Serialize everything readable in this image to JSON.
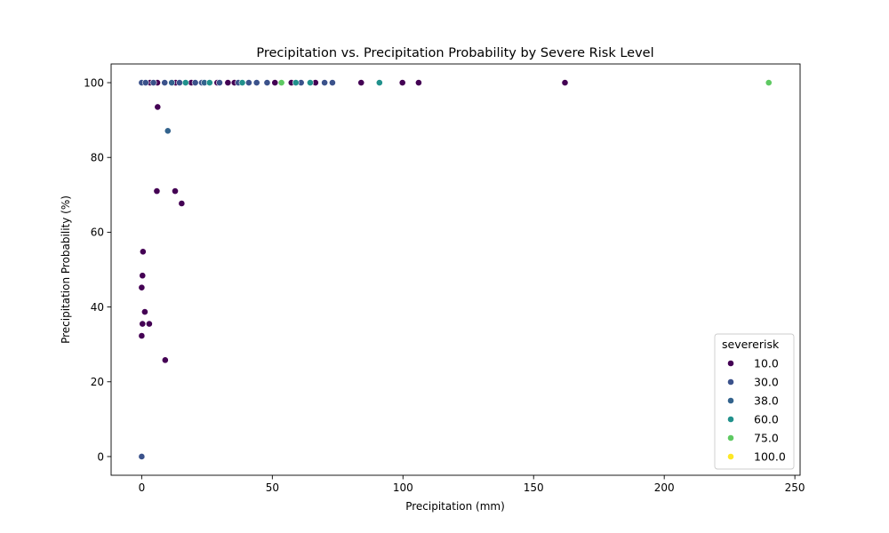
{
  "chart_data": {
    "type": "scatter",
    "title": "Precipitation vs. Precipitation Probability by Severe Risk Level",
    "xlabel": "Precipitation (mm)",
    "ylabel": "Precipitation Probability (%)",
    "xlim": [
      -11.7,
      252
    ],
    "ylim": [
      -5,
      105
    ],
    "xticks": [
      0,
      50,
      100,
      150,
      200,
      250
    ],
    "yticks": [
      0,
      20,
      40,
      60,
      80,
      100
    ],
    "grid": false,
    "legend": {
      "title": "severerisk",
      "placement": "lower-right",
      "entries": [
        {
          "label": "10.0",
          "color": "#440154"
        },
        {
          "label": "30.0",
          "color": "#3b528b"
        },
        {
          "label": "38.0",
          "color": "#33638d"
        },
        {
          "label": "60.0",
          "color": "#21918c"
        },
        {
          "label": "75.0",
          "color": "#5ec962"
        },
        {
          "label": "100.0",
          "color": "#fde725"
        }
      ]
    },
    "series": [
      {
        "name": "10.0",
        "color": "#440154",
        "points": [
          [
            0.3,
            48.4
          ],
          [
            0.5,
            54.8
          ],
          [
            0.0,
            45.2
          ],
          [
            1.2,
            38.7
          ],
          [
            0.3,
            35.5
          ],
          [
            2.9,
            35.5
          ],
          [
            0.0,
            32.3
          ],
          [
            9.0,
            25.8
          ],
          [
            5.8,
            71.0
          ],
          [
            12.8,
            71.0
          ],
          [
            15.3,
            67.7
          ],
          [
            6.1,
            93.5
          ],
          [
            3.2,
            100
          ],
          [
            6.0,
            100
          ],
          [
            13.0,
            100
          ],
          [
            19.0,
            100
          ],
          [
            28.9,
            100
          ],
          [
            33.0,
            100
          ],
          [
            35.5,
            100
          ],
          [
            51.0,
            100
          ],
          [
            57.3,
            100
          ],
          [
            66.5,
            100
          ],
          [
            84.0,
            100
          ],
          [
            99.8,
            100
          ],
          [
            106.0,
            100
          ],
          [
            162.0,
            100
          ]
        ]
      },
      {
        "name": "30.0",
        "color": "#3b528b",
        "points": [
          [
            0.0,
            0.0
          ],
          [
            0.0,
            100
          ],
          [
            1.5,
            100
          ],
          [
            4.5,
            100
          ],
          [
            8.8,
            100
          ],
          [
            14.5,
            100
          ],
          [
            20.5,
            100
          ],
          [
            23.0,
            100
          ],
          [
            29.8,
            100
          ],
          [
            37.0,
            100
          ],
          [
            41.0,
            100
          ],
          [
            44.0,
            100
          ],
          [
            48.0,
            100
          ],
          [
            61.0,
            100
          ],
          [
            70.0,
            100
          ],
          [
            73.0,
            100
          ]
        ]
      },
      {
        "name": "38.0",
        "color": "#33638d",
        "points": [
          [
            10.0,
            87.1
          ],
          [
            11.5,
            100
          ],
          [
            24.0,
            100
          ]
        ]
      },
      {
        "name": "60.0",
        "color": "#21918c",
        "points": [
          [
            16.8,
            100
          ],
          [
            26.0,
            100
          ],
          [
            38.5,
            100
          ],
          [
            59.0,
            100
          ],
          [
            64.5,
            100
          ],
          [
            91.0,
            100
          ]
        ]
      },
      {
        "name": "75.0",
        "color": "#5ec962",
        "points": [
          [
            53.5,
            100
          ],
          [
            240.0,
            100
          ]
        ]
      },
      {
        "name": "100.0",
        "color": "#fde725",
        "points": []
      }
    ]
  }
}
